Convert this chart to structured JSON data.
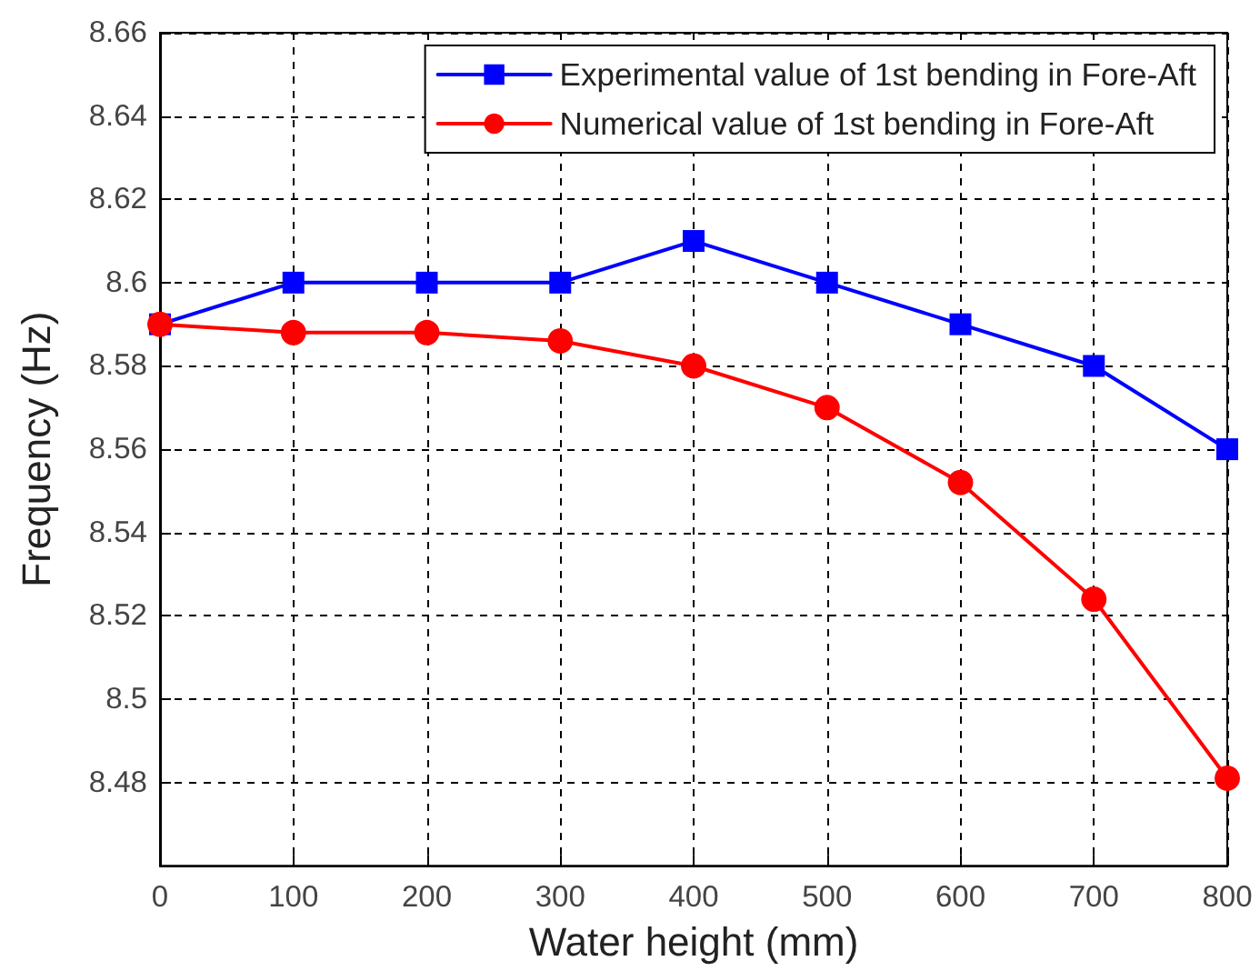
{
  "chart_data": {
    "type": "line",
    "xlabel": "Water height (mm)",
    "ylabel": "Frequency (Hz)",
    "x": [
      0,
      100,
      200,
      300,
      400,
      500,
      600,
      700,
      800
    ],
    "series": [
      {
        "name": "Experimental value of 1st bending in Fore-Aft",
        "color": "#0000ff",
        "marker": "square",
        "values": [
          8.59,
          8.6,
          8.6,
          8.6,
          8.61,
          8.6,
          8.59,
          8.58,
          8.56
        ]
      },
      {
        "name": "Numerical value of 1st bending in Fore-Aft",
        "color": "#ff0000",
        "marker": "circle",
        "values": [
          8.59,
          8.588,
          8.588,
          8.586,
          8.58,
          8.57,
          8.552,
          8.524,
          8.481
        ]
      }
    ],
    "xlim": [
      0,
      800
    ],
    "xticks": [
      0,
      100,
      200,
      300,
      400,
      500,
      600,
      700,
      800
    ],
    "ylim": [
      8.46,
      8.66
    ],
    "yticks": [
      8.48,
      8.5,
      8.52,
      8.54,
      8.56,
      8.58,
      8.6,
      8.62,
      8.64,
      8.66
    ],
    "grid": true,
    "legend": "top right",
    "line_style": "solid"
  }
}
